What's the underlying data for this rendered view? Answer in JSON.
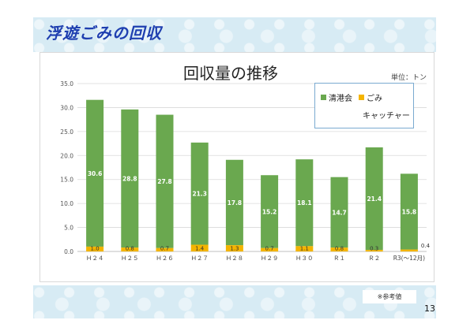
{
  "slide": {
    "title": "浮遊ごみの回収",
    "page_number": "13",
    "note": "※参考値"
  },
  "chart_data": {
    "type": "bar",
    "stacked": true,
    "title": "回収量の推移",
    "unit_label": "単位：トン",
    "categories": [
      "H24",
      "H25",
      "H26",
      "H27",
      "H28",
      "H29",
      "H30",
      "R1",
      "R2",
      "R3(〜12月)"
    ],
    "category_labels": [
      "Ｈ２４",
      "Ｈ２５",
      "Ｈ２６",
      "Ｈ２７",
      "Ｈ２８",
      "Ｈ２９",
      "Ｈ３０",
      "Ｒ１",
      "Ｒ２",
      "R3(〜12月)"
    ],
    "series": [
      {
        "name": "ごみキャッチャー",
        "color": "#f4b400",
        "values": [
          1.0,
          0.8,
          0.7,
          1.4,
          1.3,
          0.7,
          1.1,
          0.8,
          0.3,
          0.4
        ],
        "labels": [
          "1.0",
          "0.8",
          "0.7",
          "1.4",
          "1.3",
          "0.7",
          "1.1",
          "0.8",
          "0.3",
          "0.4"
        ]
      },
      {
        "name": "清港会",
        "color": "#6aa84f",
        "values": [
          30.6,
          28.8,
          27.8,
          21.3,
          17.8,
          15.2,
          18.1,
          14.7,
          21.4,
          15.8
        ],
        "labels": [
          "30.6",
          "28.8",
          "27.8",
          "21.3",
          "17.8",
          "15.2",
          "18.1",
          "14.7",
          "21.4",
          "15.8"
        ]
      }
    ],
    "y_ticks": [
      "0.0",
      "5.0",
      "10.0",
      "15.0",
      "20.0",
      "25.0",
      "30.0",
      "35.0"
    ],
    "ylim": [
      0,
      35
    ],
    "grid": true,
    "legend": {
      "position": "top-right",
      "entries": [
        "清港会",
        "ごみ",
        "キャッチャー"
      ]
    }
  }
}
